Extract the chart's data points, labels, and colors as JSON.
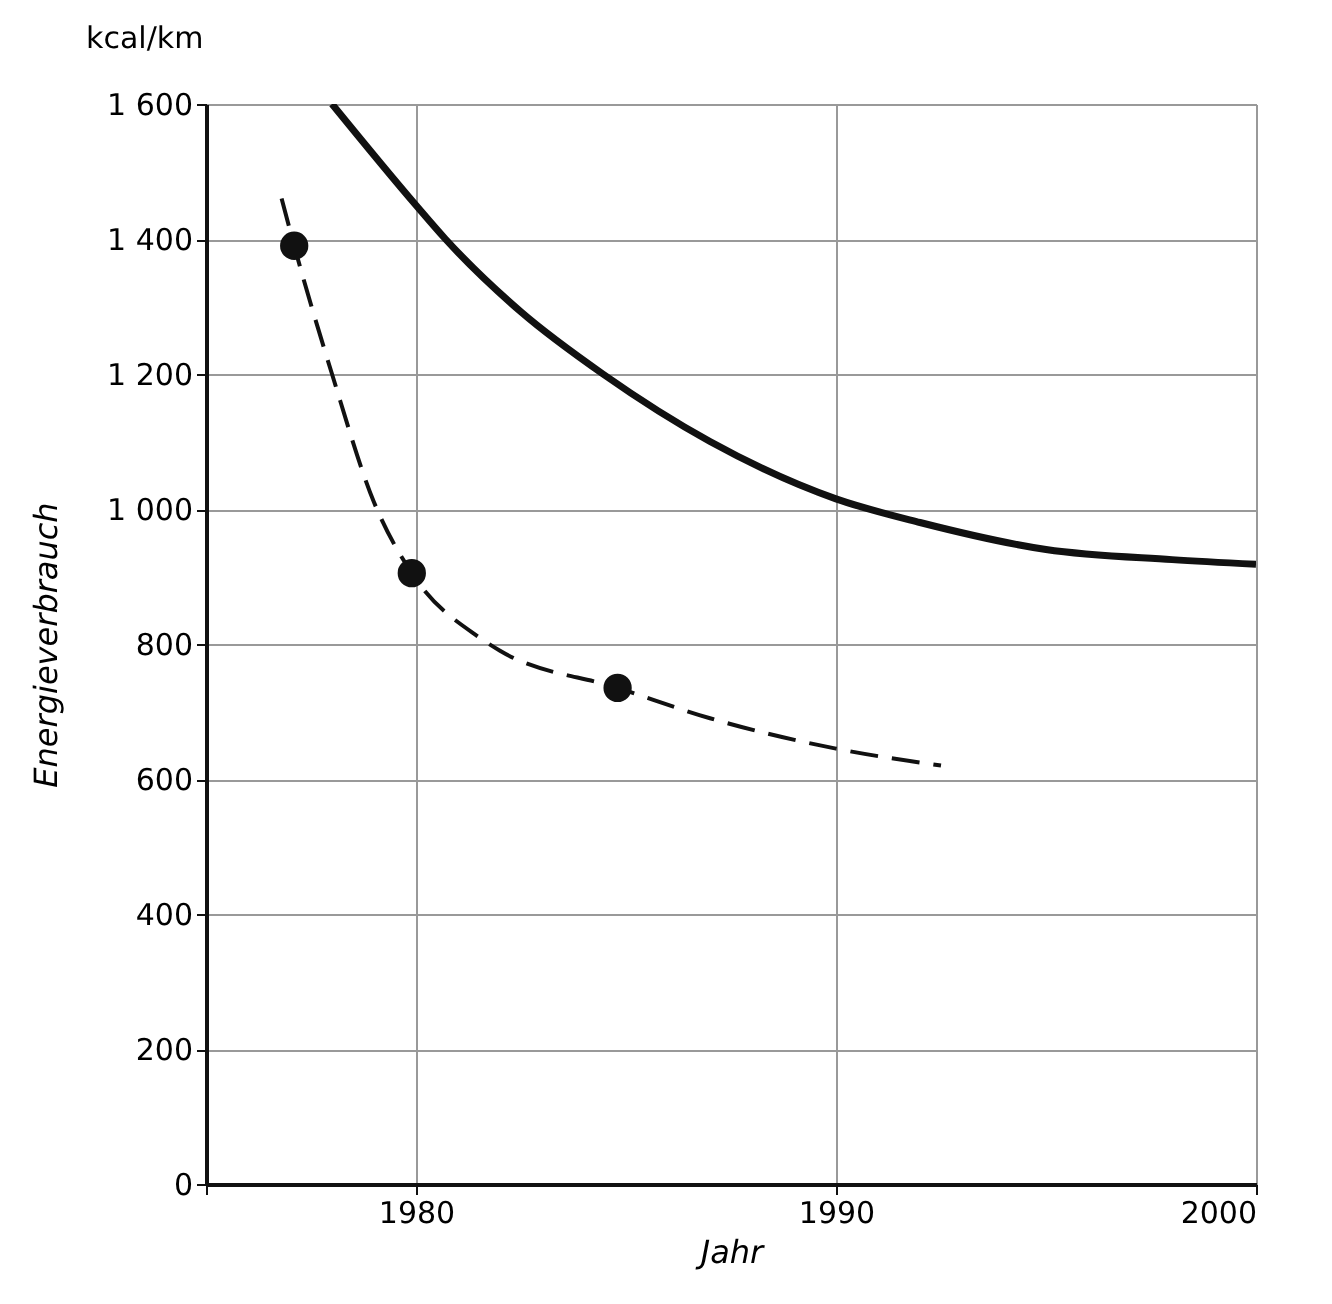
{
  "chart_data": {
    "type": "line",
    "title": "kcal/km",
    "xlabel": "Jahr",
    "ylabel": "Energieverbrauch",
    "xlim": [
      1975,
      2000
    ],
    "xticks": [
      {
        "value": 1975,
        "label": null
      },
      1980,
      1990,
      2000
    ],
    "ylim": [
      0,
      1600
    ],
    "yticks": [
      0,
      200,
      400,
      600,
      800,
      {
        "value": 1000,
        "label": "1 000"
      },
      {
        "value": 1200,
        "label": "1 200"
      },
      {
        "value": 1400,
        "label": "1 400"
      },
      {
        "value": 1600,
        "label": "1 600"
      }
    ],
    "grid": true,
    "series": [
      {
        "color": "#111111",
        "line_style": "solid",
        "marker": "none",
        "x": [
          1978,
          1980,
          1980.7,
          1982.5,
          1984.45,
          1987,
          1990,
          1992,
          1995,
          1998,
          2000
        ],
        "values": [
          1600,
          1450,
          1400,
          1292,
          1200,
          1100,
          1015,
          980,
          940,
          925,
          918
        ]
      },
      {
        "color": "#111111",
        "line_style": "dashed",
        "marker": "none",
        "x": [
          1976.8,
          1977.1,
          1978,
          1979,
          1979.9,
          1981.5,
          1982,
          1984.8,
          1987,
          1990,
          1992.5
        ],
        "values": [
          1460,
          1390,
          1200,
          1010,
          905,
          810,
          790,
          735,
          690,
          645,
          620
        ]
      },
      {
        "type": "scatter",
        "color": "#111111",
        "marker": "circle",
        "x": [
          1977.1,
          1979.9,
          1984.8
        ],
        "values": [
          1390,
          905,
          735
        ]
      }
    ]
  }
}
